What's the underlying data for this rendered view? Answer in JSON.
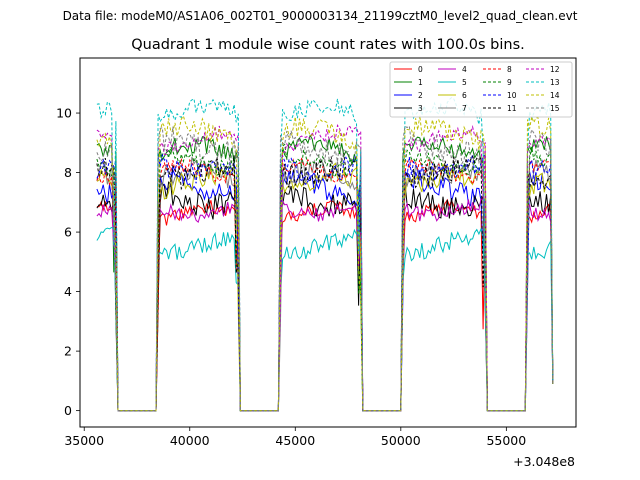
{
  "suptitle": "Data file: modeM0/AS1A06_002T01_9000003134_21199cztM0_level2_quad_clean.evt",
  "chart_data": {
    "type": "line",
    "title": "Quadrant 1 module wise count rates with 100.0s bins.",
    "xlabel": "",
    "ylabel": "",
    "x_offset_label": "+3.048e8",
    "xlim": [
      34800,
      58300
    ],
    "ylim": [
      -0.55,
      11.85
    ],
    "xticks": [
      35000,
      40000,
      45000,
      50000,
      55000
    ],
    "xtick_labels": [
      "35000",
      "40000",
      "45000",
      "50000",
      "55000"
    ],
    "yticks": [
      0,
      2,
      4,
      6,
      8,
      10
    ],
    "ytick_labels": [
      "0",
      "2",
      "4",
      "6",
      "8",
      "10"
    ],
    "gaps": [
      [
        36500,
        38500
      ],
      [
        42300,
        44300
      ],
      [
        48100,
        50100
      ],
      [
        54000,
        56000
      ]
    ],
    "data_range": [
      35600,
      57200
    ],
    "bin_seconds": 100,
    "legend_position": "top-right",
    "series": [
      {
        "name": "0",
        "color": "#ff0000",
        "dash": "solid",
        "level": 6.6
      },
      {
        "name": "1",
        "color": "#008000",
        "dash": "solid",
        "level": 8.7
      },
      {
        "name": "2",
        "color": "#0000ff",
        "dash": "solid",
        "level": 7.5
      },
      {
        "name": "3",
        "color": "#000000",
        "dash": "solid",
        "level": 7.1
      },
      {
        "name": "4",
        "color": "#bf00bf",
        "dash": "solid",
        "level": 6.8
      },
      {
        "name": "5",
        "color": "#00bfbf",
        "dash": "solid",
        "level": 5.6
      },
      {
        "name": "6",
        "color": "#bfbf00",
        "dash": "solid",
        "level": 7.7
      },
      {
        "name": "7",
        "color": "#808080",
        "dash": "solid",
        "level": 7.9
      },
      {
        "name": "8",
        "color": "#ff0000",
        "dash": "dashed",
        "level": 8.0
      },
      {
        "name": "9",
        "color": "#008000",
        "dash": "dashed",
        "level": 8.4
      },
      {
        "name": "10",
        "color": "#0000ff",
        "dash": "dashed",
        "level": 8.2
      },
      {
        "name": "11",
        "color": "#000000",
        "dash": "dashed",
        "level": 8.1
      },
      {
        "name": "12",
        "color": "#bf00bf",
        "dash": "dashed",
        "level": 9.1
      },
      {
        "name": "13",
        "color": "#00bfbf",
        "dash": "dashed",
        "level": 10.0
      },
      {
        "name": "14",
        "color": "#bfbf00",
        "dash": "dashed",
        "level": 9.3
      },
      {
        "name": "15",
        "color": "#808080",
        "dash": "dashed",
        "level": 8.9
      }
    ]
  }
}
